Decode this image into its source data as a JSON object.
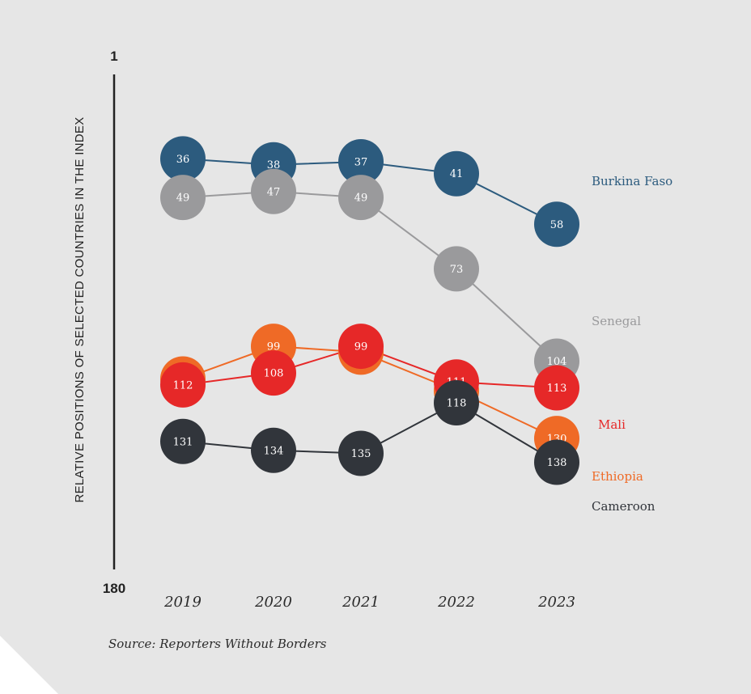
{
  "chart_data": {
    "type": "line",
    "ylabel": "RELATIVE POSITIONS OF SELECTED COUNTRIES IN THE INDEX",
    "y_axis_labels": [
      "1",
      "180"
    ],
    "ylim": [
      1,
      180
    ],
    "y_inverted": true,
    "x": [
      "2019",
      "2020",
      "2021",
      "2022",
      "2023"
    ],
    "series": [
      {
        "name": "Burkina Faso",
        "color": "#2c5b7e",
        "values": [
          36,
          38,
          37,
          41,
          58
        ]
      },
      {
        "name": "Senegal",
        "color": "#9a9a9c",
        "values": [
          49,
          47,
          49,
          73,
          104
        ]
      },
      {
        "name": "Ethiopia",
        "color": "#ef6a26",
        "values": [
          110,
          99,
          101,
          114,
          130
        ]
      },
      {
        "name": "Mali",
        "color": "#e62828",
        "values": [
          112,
          108,
          99,
          111,
          113
        ]
      },
      {
        "name": "Cameroon",
        "color": "#31353b",
        "values": [
          131,
          134,
          135,
          118,
          138
        ]
      }
    ],
    "grid": false,
    "legend": "right-end labels"
  },
  "source": "Source: Reporters Without Borders"
}
